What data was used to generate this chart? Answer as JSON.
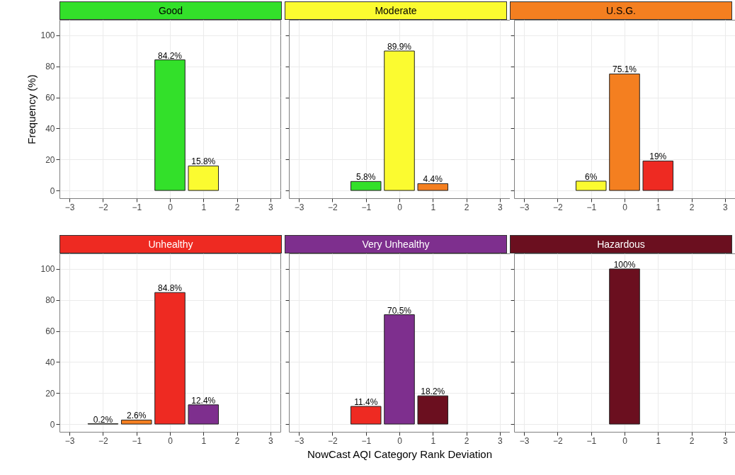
{
  "chart_data": [
    {
      "type": "bar",
      "title": "Good",
      "ylabel": "Frequency (%)",
      "x": [
        0,
        1
      ],
      "values": [
        84.2,
        15.8
      ],
      "colors": [
        "#33e02a",
        "#fbfb30"
      ],
      "value_labels": [
        "84.2%",
        "15.8%"
      ],
      "xlim": [
        -3.3,
        3.3
      ],
      "xticks": [
        {
          "value": -3,
          "label": "−3"
        },
        {
          "value": -2,
          "label": "−2"
        },
        {
          "value": -1,
          "label": "−1"
        },
        0,
        1,
        2,
        3
      ],
      "ylim": [
        -5,
        110
      ],
      "yticks": [
        0,
        20,
        40,
        60,
        80,
        100
      ],
      "grid": true
    },
    {
      "type": "bar",
      "title": "Moderate",
      "x": [
        -1,
        0,
        1
      ],
      "values": [
        5.8,
        89.9,
        4.4
      ],
      "colors": [
        "#33e02a",
        "#fbfb30",
        "#f47f20"
      ],
      "value_labels": [
        "5.8%",
        "89.9%",
        "4.4%"
      ],
      "xlim": [
        -3.3,
        3.3
      ],
      "xticks": [
        {
          "value": -3,
          "label": "−3"
        },
        {
          "value": -2,
          "label": "−2"
        },
        {
          "value": -1,
          "label": "−1"
        },
        0,
        1,
        2,
        3
      ],
      "ylim": [
        -5,
        110
      ],
      "yticks": [
        0,
        20,
        40,
        60,
        80,
        100
      ],
      "grid": true,
      "tick_labels": "x"
    },
    {
      "type": "bar",
      "title": "U.S.G.",
      "x": [
        -1,
        0,
        1
      ],
      "values": [
        6,
        75.1,
        19
      ],
      "colors": [
        "#fbfb30",
        "#f47f20",
        "#ee2a22"
      ],
      "value_labels": [
        "6%",
        "75.1%",
        "19%"
      ],
      "xlim": [
        -3.3,
        3.3
      ],
      "xticks": [
        {
          "value": -3,
          "label": "−3"
        },
        {
          "value": -2,
          "label": "−2"
        },
        {
          "value": -1,
          "label": "−1"
        },
        0,
        1,
        2,
        3
      ],
      "ylim": [
        -5,
        110
      ],
      "yticks": [
        0,
        20,
        40,
        60,
        80,
        100
      ],
      "grid": true,
      "tick_labels": "x"
    },
    {
      "type": "bar",
      "title": "Unhealthy",
      "x": [
        -2,
        -1,
        0,
        1
      ],
      "values": [
        0.2,
        2.6,
        84.8,
        12.4
      ],
      "colors": [
        "#fbfb30",
        "#f47f20",
        "#ee2a22",
        "#7e2f8e"
      ],
      "value_labels": [
        "0.2%",
        "2.6%",
        "84.8%",
        "12.4%"
      ],
      "xlim": [
        -3.3,
        3.3
      ],
      "xticks": [
        {
          "value": -3,
          "label": "−3"
        },
        {
          "value": -2,
          "label": "−2"
        },
        {
          "value": -1,
          "label": "−1"
        },
        0,
        1,
        2,
        3
      ],
      "ylim": [
        -5,
        110
      ],
      "yticks": [
        0,
        20,
        40,
        60,
        80,
        100
      ],
      "grid": true
    },
    {
      "type": "bar",
      "title": "Very Unhealthy",
      "xlabel": "NowCast AQI Category Rank Deviation",
      "x": [
        -1,
        0,
        1
      ],
      "values": [
        11.4,
        70.5,
        18.2
      ],
      "colors": [
        "#ee2a22",
        "#7e2f8e",
        "#6b0f1f"
      ],
      "value_labels": [
        "11.4%",
        "70.5%",
        "18.2%"
      ],
      "xlim": [
        -3.3,
        3.3
      ],
      "xticks": [
        {
          "value": -3,
          "label": "−3"
        },
        {
          "value": -2,
          "label": "−2"
        },
        {
          "value": -1,
          "label": "−1"
        },
        0,
        1,
        2,
        3
      ],
      "ylim": [
        -5,
        110
      ],
      "yticks": [
        0,
        20,
        40,
        60,
        80,
        100
      ],
      "grid": true,
      "tick_labels": "x"
    },
    {
      "type": "bar",
      "title": "Hazardous",
      "x": [
        0
      ],
      "values": [
        100
      ],
      "colors": [
        "#6b0f1f"
      ],
      "value_labels": [
        "100%"
      ],
      "xlim": [
        -3.3,
        3.3
      ],
      "xticks": [
        {
          "value": -3,
          "label": "−3"
        },
        {
          "value": -2,
          "label": "−2"
        },
        {
          "value": -1,
          "label": "−1"
        },
        0,
        1,
        2,
        3
      ],
      "ylim": [
        -5,
        110
      ],
      "yticks": [
        0,
        20,
        40,
        60,
        80,
        100
      ],
      "grid": true,
      "tick_labels": "x"
    }
  ]
}
